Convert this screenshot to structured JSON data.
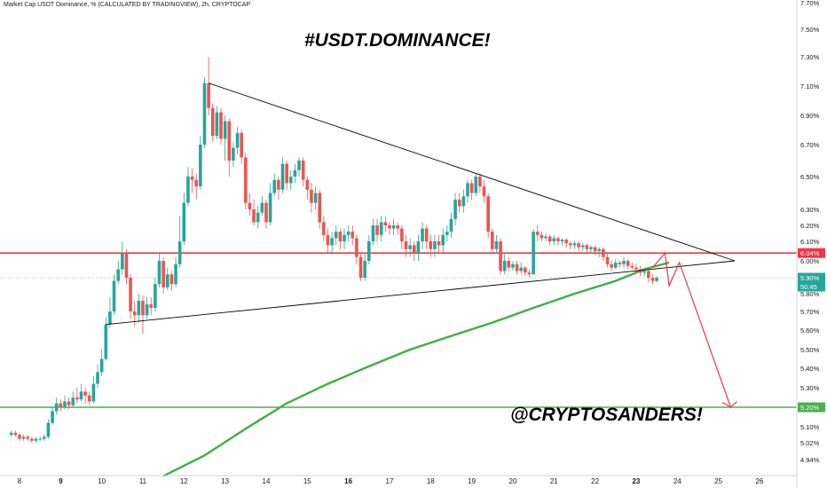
{
  "header": "Market Cap USDT Dominance, % (CALCULATED BY TRADINGVIEW), 2h, CRYPTOCAP",
  "title": "#USDT.DOMINANCE!",
  "signature": "@CRYPTOSANDERS!",
  "colors": {
    "up": "#26a69a",
    "down": "#ef5350",
    "resistance": "#f23645",
    "support": "#4caf50",
    "ma": "#3cb043",
    "triangle": "#000000",
    "projection": "#f23645"
  },
  "chart_data": {
    "type": "candlestick",
    "ylim": [
      4.9,
      7.75
    ],
    "x_ticks": [
      "8",
      "9",
      "10",
      "11",
      "12",
      "13",
      "14",
      "15",
      "16",
      "17",
      "18",
      "19",
      "20",
      "21",
      "22",
      "23",
      "24",
      "25",
      "26"
    ],
    "x_ticks_bold": [
      "9",
      "16",
      "23"
    ],
    "y_ticks": [
      "7.70%",
      "7.50%",
      "7.30%",
      "7.10%",
      "6.90%",
      "6.70%",
      "6.50%",
      "6.30%",
      "6.20%",
      "6.10%",
      "6.00%",
      "5.80%",
      "5.70%",
      "5.60%",
      "5.50%",
      "5.40%",
      "5.30%",
      "5.20%",
      "5.10%",
      "5.02%",
      "4.94%"
    ],
    "price_tags": [
      {
        "label": "6.04%",
        "color": "#f23645"
      },
      {
        "label": "5.90%",
        "color": "#26a69a"
      },
      {
        "label": "50:45",
        "color": "#26a69a"
      },
      {
        "label": "5.20%",
        "color": "#4caf50"
      }
    ],
    "horizontal_levels": [
      {
        "name": "resistance",
        "value": 6.04
      },
      {
        "name": "support",
        "value": 5.2
      }
    ],
    "trendlines": [
      {
        "name": "upper",
        "points": [
          [
            12.6,
            7.12
          ],
          [
            25.4,
            6.0
          ]
        ]
      },
      {
        "name": "lower",
        "points": [
          [
            10.1,
            5.63
          ],
          [
            25.4,
            6.0
          ]
        ]
      }
    ],
    "projection": [
      [
        23.4,
        5.96
      ],
      [
        23.7,
        6.04
      ],
      [
        23.8,
        5.85
      ],
      [
        24.05,
        5.99
      ],
      [
        25.3,
        5.2
      ]
    ],
    "projection_arrowhead": [
      [
        25.1,
        5.225
      ],
      [
        25.3,
        5.2
      ],
      [
        25.45,
        5.23
      ]
    ],
    "moving_average": [
      [
        11.5,
        4.86
      ],
      [
        12.5,
        4.96
      ],
      [
        13.5,
        5.09
      ],
      [
        14.5,
        5.22
      ],
      [
        15.5,
        5.32
      ],
      [
        16.5,
        5.41
      ],
      [
        17.5,
        5.5
      ],
      [
        18.5,
        5.57
      ],
      [
        19.5,
        5.64
      ],
      [
        20.5,
        5.72
      ],
      [
        21.5,
        5.8
      ],
      [
        22.5,
        5.88
      ],
      [
        23.2,
        5.95
      ],
      [
        23.8,
        5.99
      ]
    ],
    "candles": [
      [
        7.8,
        5.06,
        5.07,
        5.08,
        5.05
      ],
      [
        7.9,
        5.07,
        5.06,
        5.08,
        5.05
      ],
      [
        8.0,
        5.06,
        5.04,
        5.07,
        5.03
      ],
      [
        8.1,
        5.04,
        5.05,
        5.06,
        5.03
      ],
      [
        8.2,
        5.05,
        5.04,
        5.06,
        5.03
      ],
      [
        8.3,
        5.04,
        5.03,
        5.05,
        5.02
      ],
      [
        8.4,
        5.03,
        5.04,
        5.05,
        5.02
      ],
      [
        8.5,
        5.04,
        5.04,
        5.05,
        5.03
      ],
      [
        8.6,
        5.04,
        5.05,
        5.06,
        5.03
      ],
      [
        8.7,
        5.05,
        5.12,
        5.14,
        5.04
      ],
      [
        8.8,
        5.12,
        5.18,
        5.2,
        5.11
      ],
      [
        8.9,
        5.18,
        5.22,
        5.25,
        5.16
      ],
      [
        9.0,
        5.22,
        5.2,
        5.24,
        5.18
      ],
      [
        9.1,
        5.2,
        5.23,
        5.26,
        5.19
      ],
      [
        9.2,
        5.23,
        5.21,
        5.25,
        5.19
      ],
      [
        9.3,
        5.21,
        5.25,
        5.28,
        5.2
      ],
      [
        9.4,
        5.25,
        5.24,
        5.3,
        5.22
      ],
      [
        9.5,
        5.24,
        5.28,
        5.32,
        5.23
      ],
      [
        9.6,
        5.28,
        5.26,
        5.3,
        5.22
      ],
      [
        9.7,
        5.26,
        5.23,
        5.28,
        5.21
      ],
      [
        9.8,
        5.23,
        5.32,
        5.36,
        5.22
      ],
      [
        9.9,
        5.32,
        5.38,
        5.42,
        5.3
      ],
      [
        10.0,
        5.38,
        5.45,
        5.5,
        5.36
      ],
      [
        10.1,
        5.45,
        5.63,
        5.67,
        5.44
      ],
      [
        10.2,
        5.63,
        5.7,
        5.78,
        5.61
      ],
      [
        10.3,
        5.7,
        5.88,
        5.92,
        5.68
      ],
      [
        10.4,
        5.88,
        5.95,
        6.0,
        5.86
      ],
      [
        10.5,
        5.95,
        6.04,
        6.1,
        5.92
      ],
      [
        10.6,
        6.04,
        5.9,
        6.06,
        5.86
      ],
      [
        10.7,
        5.9,
        5.7,
        5.92,
        5.66
      ],
      [
        10.8,
        5.7,
        5.68,
        5.76,
        5.62
      ],
      [
        10.9,
        5.68,
        5.76,
        5.8,
        5.64
      ],
      [
        11.0,
        5.76,
        5.68,
        5.79,
        5.58
      ],
      [
        11.1,
        5.68,
        5.74,
        5.78,
        5.66
      ],
      [
        11.2,
        5.74,
        5.72,
        5.78,
        5.68
      ],
      [
        11.3,
        5.72,
        5.86,
        5.9,
        5.7
      ],
      [
        11.4,
        5.86,
        6.0,
        6.04,
        5.84
      ],
      [
        11.5,
        6.0,
        5.84,
        6.02,
        5.8
      ],
      [
        11.6,
        5.84,
        5.92,
        5.96,
        5.82
      ],
      [
        11.7,
        5.92,
        5.86,
        5.94,
        5.82
      ],
      [
        11.8,
        5.86,
        5.98,
        6.02,
        5.84
      ],
      [
        11.9,
        5.98,
        6.1,
        6.26,
        5.96
      ],
      [
        12.0,
        6.1,
        6.34,
        6.4,
        6.08
      ],
      [
        12.1,
        6.34,
        6.5,
        6.56,
        6.32
      ],
      [
        12.2,
        6.5,
        6.48,
        6.55,
        6.4
      ],
      [
        12.3,
        6.48,
        6.44,
        6.52,
        6.36
      ],
      [
        12.4,
        6.44,
        6.7,
        6.76,
        6.42
      ],
      [
        12.5,
        6.7,
        7.12,
        7.16,
        6.68
      ],
      [
        12.6,
        7.12,
        6.95,
        7.3,
        6.9
      ],
      [
        12.7,
        6.95,
        6.76,
        6.98,
        6.72
      ],
      [
        12.8,
        6.76,
        6.92,
        6.96,
        6.74
      ],
      [
        12.9,
        6.92,
        6.74,
        6.95,
        6.7
      ],
      [
        13.0,
        6.74,
        6.86,
        6.9,
        6.6
      ],
      [
        13.1,
        6.86,
        6.6,
        6.88,
        6.5
      ],
      [
        13.2,
        6.6,
        6.68,
        6.72,
        6.56
      ],
      [
        13.3,
        6.68,
        6.78,
        6.82,
        6.64
      ],
      [
        13.4,
        6.78,
        6.62,
        6.8,
        6.58
      ],
      [
        13.5,
        6.62,
        6.34,
        6.65,
        6.3
      ],
      [
        13.6,
        6.34,
        6.3,
        6.4,
        6.26
      ],
      [
        13.7,
        6.3,
        6.22,
        6.36,
        6.2
      ],
      [
        13.8,
        6.22,
        6.28,
        6.32,
        6.18
      ],
      [
        13.9,
        6.28,
        6.34,
        6.38,
        6.26
      ],
      [
        14.0,
        6.34,
        6.22,
        6.36,
        6.18
      ],
      [
        14.1,
        6.22,
        6.4,
        6.46,
        6.2
      ],
      [
        14.2,
        6.4,
        6.48,
        6.52,
        6.38
      ],
      [
        14.3,
        6.48,
        6.42,
        6.5,
        6.36
      ],
      [
        14.4,
        6.42,
        6.58,
        6.62,
        6.4
      ],
      [
        14.5,
        6.58,
        6.46,
        6.6,
        6.42
      ],
      [
        14.6,
        6.46,
        6.5,
        6.54,
        6.42
      ],
      [
        14.7,
        6.5,
        6.54,
        6.58,
        6.46
      ],
      [
        14.8,
        6.54,
        6.6,
        6.62,
        6.5
      ],
      [
        14.9,
        6.6,
        6.48,
        6.62,
        6.44
      ],
      [
        15.0,
        6.48,
        6.42,
        6.5,
        6.36
      ],
      [
        15.1,
        6.42,
        6.34,
        6.46,
        6.28
      ],
      [
        15.2,
        6.34,
        6.4,
        6.44,
        6.3
      ],
      [
        15.3,
        6.4,
        6.22,
        6.42,
        6.18
      ],
      [
        15.4,
        6.22,
        6.14,
        6.26,
        6.1
      ],
      [
        15.5,
        6.14,
        6.08,
        6.18,
        6.04
      ],
      [
        15.6,
        6.08,
        6.12,
        6.16,
        6.04
      ],
      [
        15.7,
        6.12,
        6.16,
        6.2,
        6.08
      ],
      [
        15.8,
        6.16,
        6.1,
        6.18,
        6.06
      ],
      [
        15.9,
        6.1,
        6.14,
        6.18,
        6.06
      ],
      [
        16.0,
        6.14,
        6.16,
        6.2,
        6.1
      ],
      [
        16.1,
        6.16,
        6.12,
        6.2,
        6.08
      ],
      [
        16.2,
        6.12,
        6.02,
        6.14,
        5.98
      ],
      [
        16.3,
        6.02,
        5.9,
        6.04,
        5.88
      ],
      [
        16.4,
        5.9,
        6.0,
        6.04,
        5.88
      ],
      [
        16.5,
        6.0,
        6.1,
        6.14,
        5.98
      ],
      [
        16.6,
        6.1,
        6.2,
        6.24,
        6.08
      ],
      [
        16.7,
        6.2,
        6.14,
        6.24,
        6.1
      ],
      [
        16.8,
        6.14,
        6.22,
        6.26,
        6.1
      ],
      [
        16.9,
        6.22,
        6.2,
        6.26,
        6.16
      ],
      [
        17.0,
        6.2,
        6.18,
        6.22,
        6.14
      ],
      [
        17.1,
        6.18,
        6.2,
        6.24,
        6.14
      ],
      [
        17.2,
        6.2,
        6.18,
        6.22,
        6.14
      ],
      [
        17.3,
        6.18,
        6.1,
        6.2,
        6.06
      ],
      [
        17.4,
        6.1,
        6.06,
        6.14,
        6.02
      ],
      [
        17.5,
        6.06,
        6.08,
        6.12,
        6.02
      ],
      [
        17.6,
        6.08,
        6.04,
        6.1,
        6.0
      ],
      [
        17.7,
        6.04,
        6.1,
        6.14,
        6.0
      ],
      [
        17.8,
        6.1,
        6.18,
        6.22,
        6.06
      ],
      [
        17.9,
        6.18,
        6.1,
        6.2,
        6.06
      ],
      [
        18.0,
        6.1,
        6.06,
        6.14,
        6.02
      ],
      [
        18.1,
        6.06,
        6.1,
        6.14,
        6.02
      ],
      [
        18.2,
        6.1,
        6.08,
        6.14,
        6.04
      ],
      [
        18.3,
        6.08,
        6.14,
        6.18,
        6.04
      ],
      [
        18.4,
        6.14,
        6.16,
        6.2,
        6.1
      ],
      [
        18.5,
        6.16,
        6.24,
        6.28,
        6.12
      ],
      [
        18.6,
        6.24,
        6.36,
        6.4,
        6.2
      ],
      [
        18.7,
        6.36,
        6.32,
        6.4,
        6.28
      ],
      [
        18.8,
        6.32,
        6.38,
        6.42,
        6.28
      ],
      [
        18.9,
        6.38,
        6.46,
        6.48,
        6.34
      ],
      [
        19.0,
        6.46,
        6.4,
        6.48,
        6.36
      ],
      [
        19.1,
        6.4,
        6.5,
        6.52,
        6.38
      ],
      [
        19.2,
        6.5,
        6.44,
        6.52,
        6.4
      ],
      [
        19.3,
        6.44,
        6.38,
        6.48,
        6.34
      ],
      [
        19.4,
        6.38,
        6.16,
        6.4,
        6.12
      ],
      [
        19.5,
        6.16,
        6.06,
        6.18,
        6.04
      ],
      [
        19.6,
        6.06,
        6.1,
        6.14,
        6.04
      ],
      [
        19.7,
        6.1,
        5.94,
        6.12,
        5.92
      ],
      [
        19.8,
        5.94,
        6.0,
        6.04,
        5.92
      ],
      [
        19.9,
        6.0,
        5.96,
        6.02,
        5.94
      ],
      [
        20.0,
        5.96,
        5.98,
        6.0,
        5.94
      ],
      [
        20.1,
        5.98,
        5.94,
        6.0,
        5.92
      ],
      [
        20.2,
        5.94,
        5.96,
        5.99,
        5.92
      ],
      [
        20.3,
        5.96,
        5.93,
        5.97,
        5.91
      ],
      [
        20.4,
        5.93,
        5.92,
        5.95,
        5.9
      ],
      [
        20.5,
        5.92,
        6.16,
        6.18,
        5.92
      ],
      [
        20.6,
        6.16,
        6.14,
        6.2,
        6.1
      ],
      [
        20.7,
        6.14,
        6.12,
        6.16,
        6.1
      ],
      [
        20.8,
        6.12,
        6.13,
        6.15,
        6.1
      ],
      [
        20.9,
        6.13,
        6.1,
        6.14,
        6.08
      ],
      [
        21.0,
        6.1,
        6.12,
        6.14,
        6.08
      ],
      [
        21.1,
        6.12,
        6.1,
        6.13,
        6.08
      ],
      [
        21.2,
        6.1,
        6.11,
        6.12,
        6.08
      ],
      [
        21.3,
        6.11,
        6.09,
        6.12,
        6.07
      ],
      [
        21.4,
        6.09,
        6.08,
        6.1,
        6.06
      ],
      [
        21.5,
        6.08,
        6.09,
        6.1,
        6.06
      ],
      [
        21.6,
        6.09,
        6.07,
        6.1,
        6.05
      ],
      [
        21.7,
        6.07,
        6.08,
        6.09,
        6.05
      ],
      [
        21.8,
        6.08,
        6.06,
        6.09,
        6.04
      ],
      [
        21.9,
        6.06,
        6.07,
        6.08,
        6.04
      ],
      [
        22.0,
        6.07,
        6.05,
        6.08,
        6.03
      ],
      [
        22.1,
        6.05,
        6.06,
        6.07,
        6.02
      ],
      [
        22.2,
        6.06,
        6.02,
        6.07,
        6.0
      ],
      [
        22.3,
        6.02,
        5.98,
        6.04,
        5.96
      ],
      [
        22.4,
        5.98,
        5.96,
        6.0,
        5.94
      ],
      [
        22.5,
        5.96,
        5.99,
        6.01,
        5.95
      ],
      [
        22.6,
        5.99,
        5.98,
        6.0,
        5.96
      ],
      [
        22.7,
        5.98,
        6.0,
        6.02,
        5.96
      ],
      [
        22.8,
        6.0,
        5.97,
        6.01,
        5.95
      ],
      [
        22.9,
        5.97,
        5.96,
        5.99,
        5.95
      ],
      [
        23.0,
        5.96,
        5.95,
        5.98,
        5.93
      ],
      [
        23.1,
        5.95,
        5.93,
        5.97,
        5.91
      ],
      [
        23.2,
        5.93,
        5.94,
        5.96,
        5.91
      ],
      [
        23.3,
        5.94,
        5.9,
        5.95,
        5.87
      ],
      [
        23.4,
        5.9,
        5.88,
        5.92,
        5.86
      ],
      [
        23.5,
        5.88,
        5.9,
        5.91,
        5.87
      ]
    ]
  }
}
